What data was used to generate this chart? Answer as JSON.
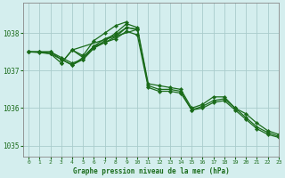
{
  "title": "Graphe pression niveau de la mer (hPa)",
  "background_color": "#d4eeee",
  "grid_color": "#aacccc",
  "line_color": "#1a6b1a",
  "xlim": [
    -0.5,
    23
  ],
  "ylim": [
    1034.7,
    1038.8
  ],
  "yticks": [
    1035,
    1036,
    1037,
    1038
  ],
  "xtick_labels": [
    "0",
    "1",
    "2",
    "3",
    "4",
    "5",
    "6",
    "7",
    "8",
    "9",
    "10",
    "11",
    "12",
    "13",
    "14",
    "15",
    "16",
    "17",
    "18",
    "19",
    "20",
    "21",
    "22",
    "23"
  ],
  "series": [
    {
      "x": [
        0,
        1,
        2,
        3,
        4,
        5,
        6,
        7,
        8,
        9,
        10,
        11,
        12,
        13,
        14,
        15,
        16,
        17,
        18,
        19,
        20,
        21,
        22,
        23
      ],
      "y": [
        1037.5,
        1037.5,
        1037.5,
        1037.35,
        1037.2,
        1037.3,
        1037.6,
        1037.8,
        1038.0,
        1038.25,
        1038.15,
        1036.65,
        1036.6,
        1036.55,
        1036.5,
        1036.0,
        1036.1,
        1036.3,
        1036.3,
        1036.0,
        1035.85,
        1035.6,
        1035.4,
        1035.3
      ]
    },
    {
      "x": [
        0,
        1,
        2,
        3,
        4,
        5,
        6,
        7,
        8,
        9,
        10,
        11,
        12,
        13,
        14,
        15,
        16,
        17,
        18,
        19,
        20,
        21,
        22,
        23
      ],
      "y": [
        1037.5,
        1037.5,
        1037.5,
        1037.3,
        1037.15,
        1037.35,
        1037.65,
        1037.85,
        1037.95,
        1038.15,
        1038.1,
        1036.6,
        1036.5,
        1036.5,
        1036.45,
        1035.95,
        1036.05,
        1036.2,
        1036.25,
        1036.0,
        1035.75,
        1035.5,
        1035.35,
        1035.25
      ]
    },
    {
      "x": [
        0,
        1,
        2,
        3,
        4,
        5,
        6,
        7,
        8,
        9,
        10,
        11,
        12,
        13,
        14,
        15,
        16,
        17,
        18,
        19,
        20,
        21,
        22,
        23
      ],
      "y": [
        1037.5,
        1037.48,
        1037.45,
        1037.3,
        1037.15,
        1037.3,
        1037.6,
        1037.75,
        1037.85,
        1038.05,
        1037.95,
        1036.55,
        1036.45,
        1036.45,
        1036.4,
        1035.95,
        1036.0,
        1036.15,
        1036.2,
        1035.95,
        1035.7,
        1035.45,
        1035.3,
        1035.22
      ]
    },
    {
      "x": [
        0,
        1,
        2,
        3,
        4,
        10
      ],
      "y": [
        1037.5,
        1037.5,
        1037.45,
        1037.2,
        1037.55,
        1038.1
      ]
    },
    {
      "x": [
        4,
        5,
        6,
        7,
        8,
        9
      ],
      "y": [
        1037.55,
        1037.4,
        1037.8,
        1038.0,
        1038.2,
        1038.3
      ]
    },
    {
      "x": [
        3,
        4,
        5,
        6,
        7,
        8,
        9,
        10
      ],
      "y": [
        1037.2,
        1037.55,
        1037.35,
        1037.65,
        1037.75,
        1037.9,
        1038.15,
        1038.1
      ]
    }
  ]
}
